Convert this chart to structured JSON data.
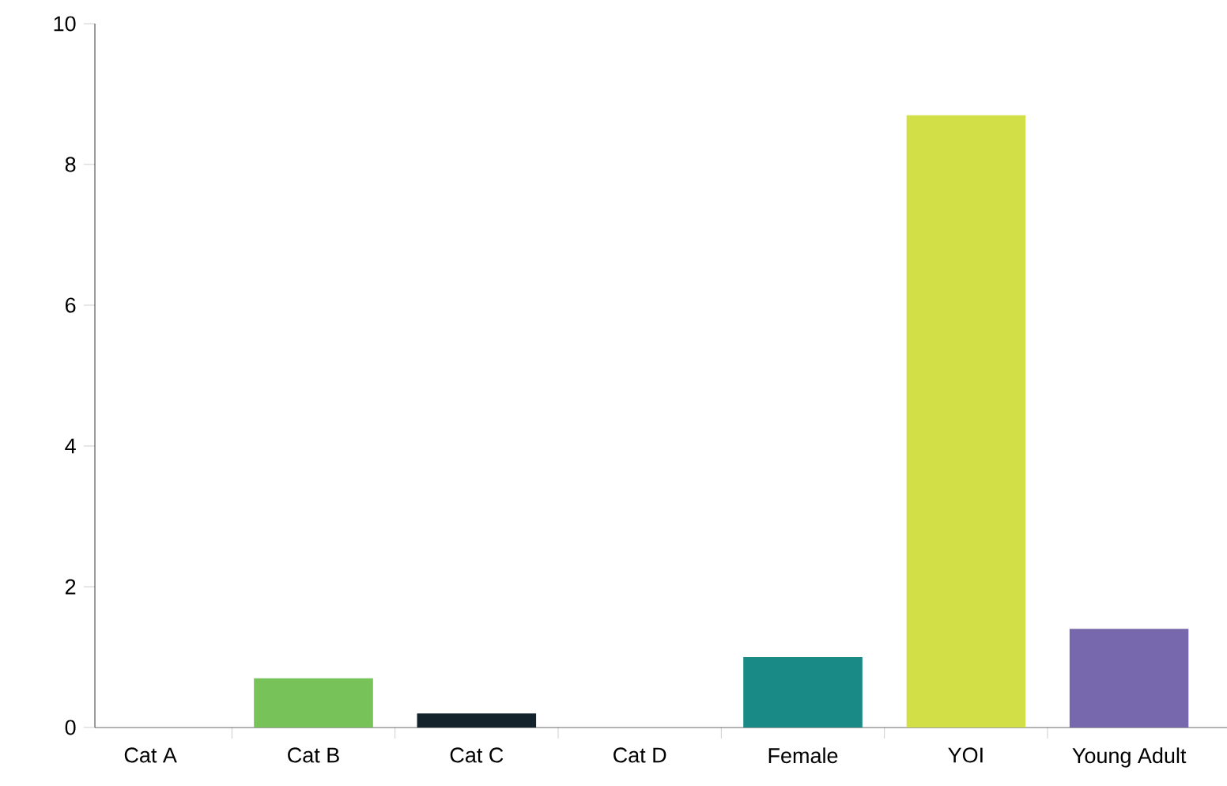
{
  "chart_data": {
    "type": "bar",
    "categories": [
      "Cat A",
      "Cat B",
      "Cat C",
      "Cat D",
      "Female",
      "YOI",
      "Young Adult"
    ],
    "values": [
      0,
      0.7,
      0.2,
      0,
      1.0,
      8.7,
      1.4
    ],
    "colors": [
      "#77c35a",
      "#77c35a",
      "#13222b",
      "#13222b",
      "#1a8a87",
      "#d3df47",
      "#7767ad"
    ],
    "ylim": [
      0,
      10
    ],
    "yticks": [
      0,
      2,
      4,
      6,
      8,
      10
    ],
    "grid": false
  }
}
